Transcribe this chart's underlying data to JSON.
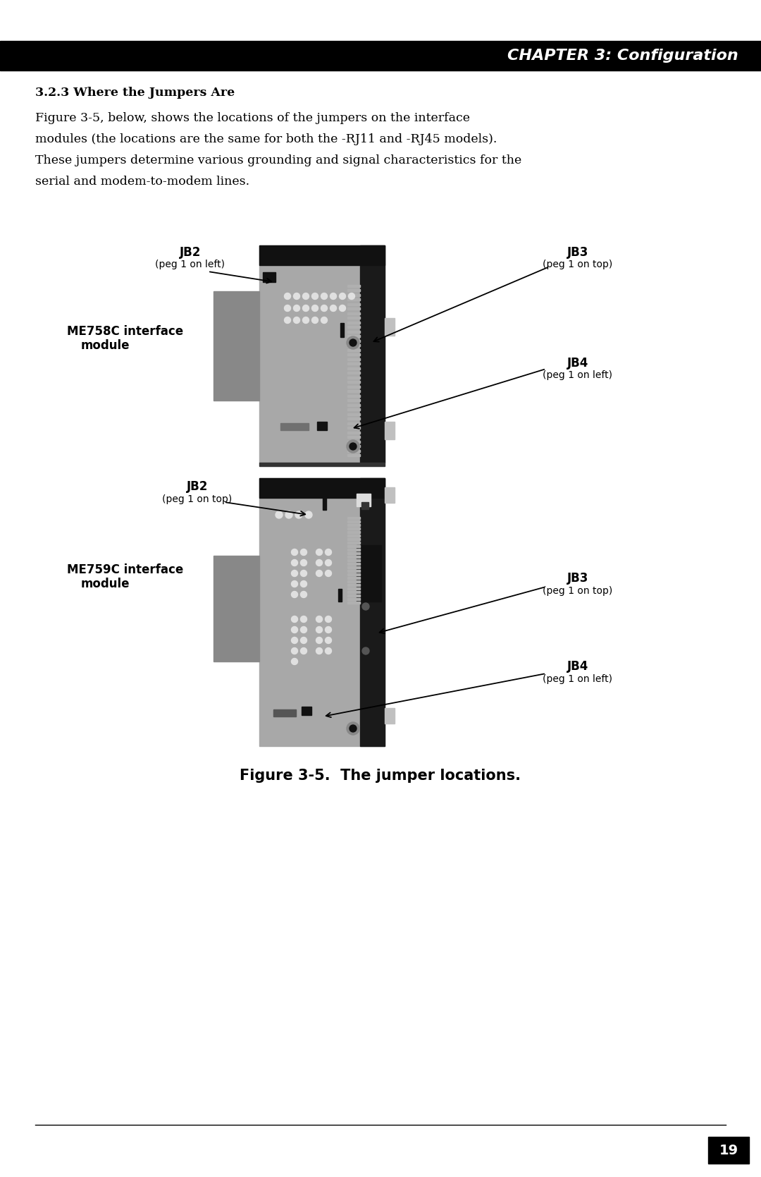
{
  "page_bg": "#ffffff",
  "header_bg": "#000000",
  "header_text": "CHAPTER 3: Configuration",
  "header_text_color": "#ffffff",
  "section_title": "3.2.3 Where the Jumpers Are",
  "body_text_line1": "Figure 3-5, below, shows the locations of the jumpers on the interface",
  "body_text_line2": "modules (the locations are the same for both the -RJ11 and -RJ45 models).",
  "body_text_line3": "These jumpers determine various grounding and signal characteristics for the",
  "body_text_line4": "serial and modem-to-modem lines.",
  "figure_caption": "Figure 3-5.  The jumper locations.",
  "page_number": "19",
  "diagram1_label_line1": "ME758C interface",
  "diagram1_label_line2": "module",
  "diagram2_label_line1": "ME759C interface",
  "diagram2_label_line2": "module"
}
